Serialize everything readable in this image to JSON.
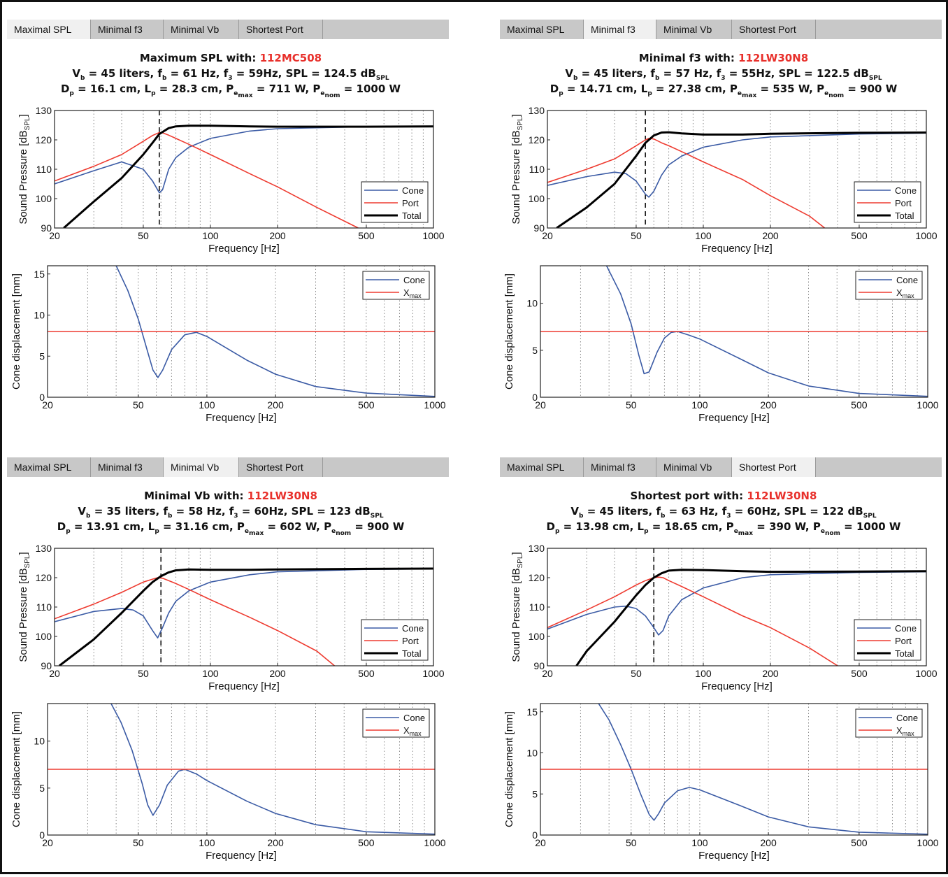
{
  "panels": [
    {
      "tabs": [
        "Maximal SPL",
        "Minimal f3",
        "Minimal Vb",
        "Shortest Port"
      ],
      "active_tab": 0,
      "title": {
        "line1_prefix": "Maximum  SPL  with:",
        "driver": "112MC508",
        "vb": "45",
        "fb": "61",
        "f3": "59",
        "spl": "124.5",
        "dp": "16.1",
        "lp": "28.3",
        "pemax": "711",
        "penom": "1000"
      }
    },
    {
      "tabs": [
        "Maximal SPL",
        "Minimal f3",
        "Minimal Vb",
        "Shortest Port"
      ],
      "active_tab": 1,
      "title": {
        "line1_prefix": "Minimal  f3  with:",
        "driver": "112LW30N8",
        "vb": "45",
        "fb": "57",
        "f3": "55",
        "spl": "122.5",
        "dp": "14.71",
        "lp": "27.38",
        "pemax": "535",
        "penom": "900"
      }
    },
    {
      "tabs": [
        "Maximal SPL",
        "Minimal f3",
        "Minimal Vb",
        "Shortest Port"
      ],
      "active_tab": 2,
      "title": {
        "line1_prefix": "Minimal  Vb  with:",
        "driver": "112LW30N8",
        "vb": "35",
        "fb": "58",
        "f3": "60",
        "spl": "123",
        "dp": "13.91",
        "lp": "31.16",
        "pemax": "602",
        "penom": "900"
      }
    },
    {
      "tabs": [
        "Maximal SPL",
        "Minimal f3",
        "Minimal Vb",
        "Shortest Port"
      ],
      "active_tab": 3,
      "title": {
        "line1_prefix": "Shortest  port  with:",
        "driver": "112LW30N8",
        "vb": "45",
        "fb": "63",
        "f3": "60",
        "spl": "122",
        "dp": "13.98",
        "lp": "18.65",
        "pemax": "390",
        "penom": "1000"
      }
    }
  ],
  "labels": {
    "xlabel": "Frequency [Hz]",
    "ylabel_spl": "Sound  Pressure  [dB",
    "ylabel_spl_sub": "SPL",
    "ylabel_disp": "Cone displacement [mm]",
    "legend_spl": [
      "Cone",
      "Port",
      "Total"
    ],
    "legend_disp": [
      "Cone",
      "X"
    ],
    "xmax_sub": "max",
    "x_ticks": [
      20,
      50,
      100,
      200,
      500,
      1000
    ]
  },
  "colors": {
    "cone": "#3b5ba5",
    "port": "#ee3b30",
    "total": "#000000",
    "driver": "#e8302b"
  },
  "chart_data": [
    {
      "type": "line",
      "panel": 0,
      "chart": "spl",
      "xlabel": "Frequency [Hz]",
      "ylabel": "Sound Pressure [dB SPL]",
      "xscale": "log",
      "xlim": [
        20,
        1000
      ],
      "ylim": [
        90,
        130
      ],
      "yticks": [
        90,
        100,
        110,
        120,
        130
      ],
      "grid": "x-dotted",
      "legend": "bottom-right",
      "vline": 59,
      "series": [
        {
          "name": "Cone",
          "x": [
            20,
            30,
            40,
            50,
            55,
            59,
            61,
            65,
            70,
            80,
            100,
            150,
            200,
            500,
            1000
          ],
          "y": [
            105,
            109.5,
            112.5,
            110,
            106,
            102,
            103,
            110,
            114,
            117.5,
            120.5,
            123,
            123.8,
            124.5,
            124.6
          ]
        },
        {
          "name": "Port",
          "x": [
            20,
            30,
            40,
            50,
            55,
            59,
            61,
            65,
            70,
            80,
            100,
            150,
            200,
            300,
            460
          ],
          "y": [
            106,
            111,
            115,
            119.5,
            121.5,
            122.5,
            122.4,
            121.6,
            120.5,
            118.5,
            115,
            108.5,
            104,
            97,
            90
          ]
        },
        {
          "name": "Total",
          "x": [
            22,
            30,
            40,
            50,
            55,
            59,
            65,
            70,
            80,
            100,
            150,
            200,
            500,
            1000
          ],
          "y": [
            90,
            99,
            107,
            115,
            119,
            122,
            124,
            124.6,
            124.8,
            124.8,
            124.6,
            124.5,
            124.5,
            124.6
          ]
        }
      ]
    },
    {
      "type": "line",
      "panel": 0,
      "chart": "displacement",
      "xlabel": "Frequency [Hz]",
      "ylabel": "Cone displacement [mm]",
      "xscale": "log",
      "xlim": [
        20,
        1000
      ],
      "ylim": [
        0,
        16
      ],
      "yticks": [
        0,
        5,
        10,
        15
      ],
      "grid": "x-dotted",
      "legend": "top-right",
      "series": [
        {
          "name": "Cone",
          "x": [
            40,
            45,
            50,
            55,
            58,
            61,
            64,
            70,
            80,
            90,
            100,
            150,
            200,
            300,
            500,
            1000
          ],
          "y": [
            16,
            13,
            9.5,
            5.5,
            3.3,
            2.4,
            3.3,
            5.8,
            7.6,
            7.9,
            7.4,
            4.5,
            2.8,
            1.3,
            0.5,
            0.1
          ]
        },
        {
          "name": "Xmax",
          "x": [
            20,
            1000
          ],
          "y": [
            8,
            8
          ]
        }
      ]
    },
    {
      "type": "line",
      "panel": 1,
      "chart": "spl",
      "xlabel": "Frequency [Hz]",
      "ylabel": "Sound Pressure [dB SPL]",
      "xscale": "log",
      "xlim": [
        20,
        1000
      ],
      "ylim": [
        90,
        130
      ],
      "yticks": [
        90,
        100,
        110,
        120,
        130
      ],
      "grid": "x-dotted",
      "legend": "bottom-right",
      "vline": 55,
      "series": [
        {
          "name": "Cone",
          "x": [
            20,
            30,
            40,
            45,
            50,
            55,
            57,
            60,
            65,
            70,
            80,
            100,
            150,
            200,
            500,
            1000
          ],
          "y": [
            104.5,
            107.5,
            109,
            108.5,
            106,
            101.5,
            100.5,
            102.5,
            108,
            111.5,
            114.5,
            117.5,
            120,
            121,
            122,
            122.3
          ]
        },
        {
          "name": "Port",
          "x": [
            20,
            30,
            40,
            50,
            55,
            57,
            60,
            65,
            70,
            80,
            100,
            150,
            200,
            300,
            350
          ],
          "y": [
            105.5,
            110,
            113.5,
            118,
            120,
            120.5,
            120.3,
            119,
            118,
            116,
            112.5,
            106.5,
            101,
            94,
            90
          ]
        },
        {
          "name": "Total",
          "x": [
            22,
            30,
            40,
            50,
            55,
            60,
            65,
            70,
            80,
            100,
            150,
            200,
            500,
            1000
          ],
          "y": [
            90,
            97,
            105,
            114.5,
            119,
            121.5,
            122.5,
            122.6,
            122.2,
            121.8,
            121.8,
            122.1,
            122.4,
            122.5
          ]
        }
      ]
    },
    {
      "type": "line",
      "panel": 1,
      "chart": "displacement",
      "xlabel": "Frequency [Hz]",
      "ylabel": "Cone displacement [mm]",
      "xscale": "log",
      "xlim": [
        20,
        1000
      ],
      "ylim": [
        0,
        14
      ],
      "yticks": [
        0,
        5,
        10
      ],
      "grid": "x-dotted",
      "legend": "top-right",
      "series": [
        {
          "name": "Cone",
          "x": [
            39,
            45,
            50,
            54,
            57,
            60,
            65,
            70,
            75,
            80,
            90,
            100,
            150,
            200,
            300,
            500,
            1000
          ],
          "y": [
            14,
            11,
            7.8,
            4.5,
            2.5,
            2.7,
            4.8,
            6.3,
            6.9,
            7,
            6.6,
            6.2,
            4.1,
            2.6,
            1.2,
            0.4,
            0.1
          ]
        },
        {
          "name": "Xmax",
          "x": [
            20,
            1000
          ],
          "y": [
            7,
            7
          ]
        }
      ]
    },
    {
      "type": "line",
      "panel": 2,
      "chart": "spl",
      "xlabel": "Frequency [Hz]",
      "ylabel": "Sound Pressure [dB SPL]",
      "xscale": "log",
      "xlim": [
        20,
        1000
      ],
      "ylim": [
        90,
        130
      ],
      "yticks": [
        90,
        100,
        110,
        120,
        130
      ],
      "grid": "x-dotted",
      "legend": "bottom-right",
      "vline": 60,
      "series": [
        {
          "name": "Cone",
          "x": [
            20,
            30,
            40,
            45,
            50,
            55,
            58,
            61,
            65,
            70,
            80,
            100,
            150,
            200,
            500,
            1000
          ],
          "y": [
            105,
            108.5,
            109.5,
            109,
            107,
            102,
            99.5,
            103,
            108,
            112,
            115.5,
            118.5,
            121,
            122,
            122.8,
            123
          ]
        },
        {
          "name": "Port",
          "x": [
            20,
            30,
            40,
            50,
            55,
            58,
            61,
            65,
            70,
            80,
            100,
            150,
            200,
            300,
            360
          ],
          "y": [
            106,
            111,
            115,
            118.5,
            119.5,
            120,
            119.8,
            119,
            118,
            116,
            112.5,
            106.5,
            102,
            95,
            90
          ]
        },
        {
          "name": "Total",
          "x": [
            21,
            30,
            40,
            50,
            55,
            60,
            65,
            70,
            80,
            100,
            150,
            200,
            500,
            1000
          ],
          "y": [
            90,
            99,
            108,
            115.5,
            118.5,
            120.5,
            121.8,
            122.5,
            122.8,
            122.7,
            122.7,
            122.8,
            123,
            123.1
          ]
        }
      ]
    },
    {
      "type": "line",
      "panel": 2,
      "chart": "displacement",
      "xlabel": "Frequency [Hz]",
      "ylabel": "Cone displacement [mm]",
      "xscale": "log",
      "xlim": [
        20,
        1000
      ],
      "ylim": [
        0,
        14
      ],
      "yticks": [
        0,
        5,
        10
      ],
      "grid": "x-dotted",
      "legend": "top-right",
      "series": [
        {
          "name": "Cone",
          "x": [
            38,
            42,
            47,
            52,
            55,
            58,
            62,
            67,
            75,
            80,
            90,
            100,
            150,
            200,
            300,
            500,
            1000
          ],
          "y": [
            14,
            12,
            9,
            5.5,
            3.2,
            2.1,
            3.2,
            5.3,
            6.8,
            7,
            6.5,
            5.8,
            3.6,
            2.3,
            1.1,
            0.35,
            0.1
          ]
        },
        {
          "name": "Xmax",
          "x": [
            20,
            1000
          ],
          "y": [
            7,
            7
          ]
        }
      ]
    },
    {
      "type": "line",
      "panel": 3,
      "chart": "spl",
      "xlabel": "Frequency [Hz]",
      "ylabel": "Sound Pressure [dB SPL]",
      "xscale": "log",
      "xlim": [
        20,
        1000
      ],
      "ylim": [
        90,
        130
      ],
      "yticks": [
        90,
        100,
        110,
        120,
        130
      ],
      "grid": "x-dotted",
      "legend": "bottom-right",
      "vline": 60,
      "series": [
        {
          "name": "Cone",
          "x": [
            20,
            30,
            40,
            45,
            50,
            55,
            60,
            63,
            66,
            70,
            80,
            100,
            150,
            200,
            500,
            1000
          ],
          "y": [
            102.5,
            107.5,
            110,
            110.3,
            109.5,
            107,
            103,
            100.5,
            102,
            107,
            112.5,
            116.5,
            120,
            121,
            121.8,
            122
          ]
        },
        {
          "name": "Port",
          "x": [
            20,
            30,
            40,
            50,
            55,
            60,
            63,
            66,
            70,
            80,
            100,
            150,
            200,
            300,
            400
          ],
          "y": [
            103,
            109,
            113.5,
            117.5,
            119,
            120,
            120.2,
            120,
            119,
            117,
            113.5,
            107,
            103,
            96,
            90
          ]
        },
        {
          "name": "Total",
          "x": [
            27,
            30,
            40,
            50,
            55,
            60,
            65,
            70,
            80,
            100,
            150,
            200,
            500,
            1000
          ],
          "y": [
            90,
            95,
            105,
            114,
            117.5,
            120,
            121.5,
            122.4,
            122.7,
            122.6,
            122.2,
            122,
            122.1,
            122.2
          ]
        }
      ]
    },
    {
      "type": "line",
      "panel": 3,
      "chart": "displacement",
      "xlabel": "Frequency [Hz]",
      "ylabel": "Cone displacement [mm]",
      "xscale": "log",
      "xlim": [
        20,
        1000
      ],
      "ylim": [
        0,
        16
      ],
      "yticks": [
        0,
        5,
        10,
        15
      ],
      "grid": "x-dotted",
      "legend": "top-right",
      "series": [
        {
          "name": "Cone",
          "x": [
            36,
            40,
            45,
            50,
            55,
            60,
            63,
            66,
            70,
            80,
            90,
            100,
            150,
            200,
            300,
            500,
            1000
          ],
          "y": [
            16,
            14,
            11,
            8,
            5,
            2.5,
            1.8,
            2.6,
            3.9,
            5.4,
            5.8,
            5.5,
            3.6,
            2.2,
            1,
            0.35,
            0.1
          ]
        },
        {
          "name": "Xmax",
          "x": [
            20,
            1000
          ],
          "y": [
            8,
            8
          ]
        }
      ]
    }
  ]
}
